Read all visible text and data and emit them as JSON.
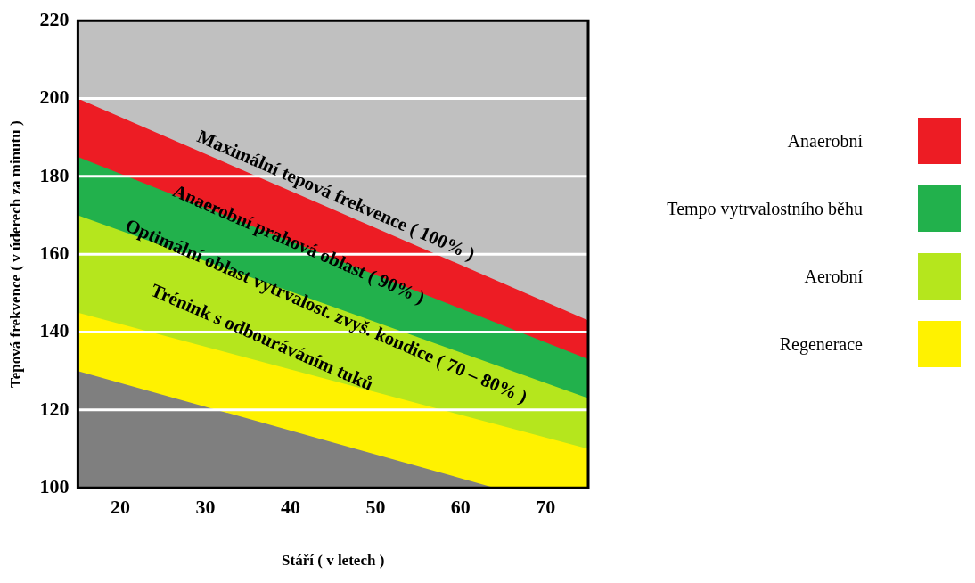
{
  "chart_data": {
    "type": "area",
    "xlabel": "Stáří ( v letech )",
    "ylabel": "Tepová frekvence ( v úderech za minutu )",
    "xlim": [
      15,
      75
    ],
    "xticks": [
      20,
      30,
      40,
      50,
      60,
      70
    ],
    "ylim": [
      100,
      220
    ],
    "yticks": [
      100,
      120,
      140,
      160,
      180,
      200,
      220
    ],
    "grid": "y",
    "legend": "right",
    "series": [
      {
        "color": "#7f7f7f",
        "x": [
          15,
          64
        ],
        "values": [
          130,
          100
        ]
      },
      {
        "name": "Regenerace",
        "color": "#fff200",
        "x": [
          15,
          75
        ],
        "values": [
          145,
          110
        ]
      },
      {
        "name": "Aerobní",
        "color": "#b5e61d",
        "x": [
          15,
          75
        ],
        "values": [
          170,
          123
        ]
      },
      {
        "name": "Tempo vytrvalostního běhu",
        "color": "#22b14c",
        "x": [
          15,
          75
        ],
        "values": [
          185,
          133
        ]
      },
      {
        "name": "Anaerobní",
        "color": "#ed1c24",
        "x": [
          15,
          75
        ],
        "values": [
          200,
          143
        ]
      }
    ],
    "annotations": [
      "Maximální tepová frekvence ( 100% )",
      "Anaerobní prahová oblast ( 90% )",
      "Optimální oblast vytrvalost. zvyš. kondice ( 70 – 80% )",
      "Trénink s odbouráváním tuků"
    ]
  }
}
